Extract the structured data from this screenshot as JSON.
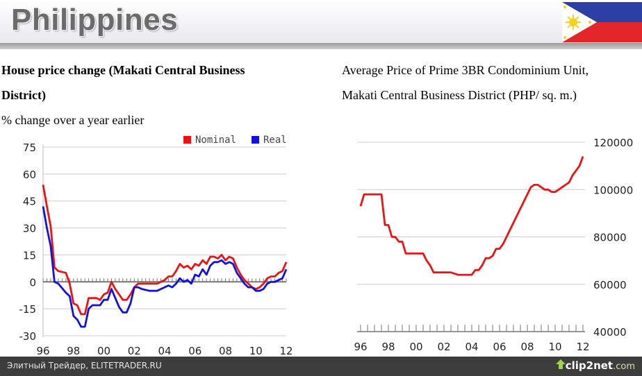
{
  "page": {
    "title": "Philippines",
    "flag_icon": "philippines-flag-icon"
  },
  "footer": {
    "text": "Элитный Трейдер, ELITETRADER.RU",
    "brand": "clip2net",
    "brand_suffix": ".com",
    "brand_icon": "upload-arrow-icon"
  },
  "chart_data": [
    {
      "type": "line",
      "title_line1": "House price change (Makati Central Business",
      "title_line2": "District)",
      "subtitle": "% change over a year earlier",
      "x_ticks": [
        "96",
        "98",
        "00",
        "02",
        "04",
        "06",
        "08",
        "10",
        "12"
      ],
      "y_ticks": [
        "75",
        "60",
        "45",
        "30",
        "15",
        "0",
        "-15",
        "-30"
      ],
      "ylim": [
        -30,
        75
      ],
      "xlim": [
        1996,
        2012
      ],
      "grid": true,
      "legend_position": "top-right",
      "colors": {
        "Nominal": "#ee1111",
        "Real": "#1111dd"
      },
      "series": [
        {
          "name": "Nominal",
          "points": [
            [
              1996.0,
              54
            ],
            [
              1996.25,
              42
            ],
            [
              1996.5,
              31
            ],
            [
              1996.75,
              8
            ],
            [
              1997.0,
              6
            ],
            [
              1997.5,
              5
            ],
            [
              1997.75,
              -1
            ],
            [
              1998.0,
              -12
            ],
            [
              1998.25,
              -13
            ],
            [
              1998.5,
              -18
            ],
            [
              1998.75,
              -18
            ],
            [
              1999.0,
              -9
            ],
            [
              1999.25,
              -9
            ],
            [
              1999.5,
              -9
            ],
            [
              1999.75,
              -10
            ],
            [
              2000.0,
              -7
            ],
            [
              2000.25,
              -6
            ],
            [
              2000.5,
              0
            ],
            [
              2000.75,
              -4
            ],
            [
              2001.0,
              -7
            ],
            [
              2001.25,
              -10
            ],
            [
              2001.5,
              -10
            ],
            [
              2001.75,
              -7
            ],
            [
              2002.0,
              -3
            ],
            [
              2002.25,
              -1
            ],
            [
              2002.5,
              -1
            ],
            [
              2003.0,
              -1
            ],
            [
              2003.5,
              -1
            ],
            [
              2004.0,
              1
            ],
            [
              2004.25,
              3
            ],
            [
              2004.5,
              3
            ],
            [
              2004.75,
              6
            ],
            [
              2005.0,
              10
            ],
            [
              2005.25,
              8
            ],
            [
              2005.5,
              9
            ],
            [
              2005.75,
              7
            ],
            [
              2006.0,
              10
            ],
            [
              2006.25,
              9
            ],
            [
              2006.5,
              12
            ],
            [
              2006.75,
              10
            ],
            [
              2007.0,
              14
            ],
            [
              2007.25,
              14
            ],
            [
              2007.5,
              13
            ],
            [
              2007.75,
              15
            ],
            [
              2008.0,
              12
            ],
            [
              2008.25,
              14
            ],
            [
              2008.5,
              13
            ],
            [
              2008.75,
              8
            ],
            [
              2009.0,
              4
            ],
            [
              2009.25,
              1
            ],
            [
              2009.5,
              -1
            ],
            [
              2009.75,
              -3
            ],
            [
              2010.0,
              -4
            ],
            [
              2010.25,
              -3
            ],
            [
              2010.5,
              -1
            ],
            [
              2010.75,
              2
            ],
            [
              2011.0,
              3
            ],
            [
              2011.25,
              3
            ],
            [
              2011.5,
              5
            ],
            [
              2011.75,
              6
            ],
            [
              2012.0,
              11
            ]
          ]
        },
        {
          "name": "Real",
          "points": [
            [
              1996.0,
              42
            ],
            [
              1996.25,
              30
            ],
            [
              1996.5,
              20
            ],
            [
              1996.75,
              0
            ],
            [
              1997.0,
              -1
            ],
            [
              1997.5,
              -6
            ],
            [
              1997.75,
              -8
            ],
            [
              1998.0,
              -19
            ],
            [
              1998.25,
              -21
            ],
            [
              1998.5,
              -25
            ],
            [
              1998.75,
              -25
            ],
            [
              1999.0,
              -15
            ],
            [
              1999.25,
              -13
            ],
            [
              1999.5,
              -13
            ],
            [
              1999.75,
              -13
            ],
            [
              2000.0,
              -10
            ],
            [
              2000.25,
              -10
            ],
            [
              2000.5,
              -4
            ],
            [
              2000.75,
              -9
            ],
            [
              2001.0,
              -14
            ],
            [
              2001.25,
              -17
            ],
            [
              2001.5,
              -17
            ],
            [
              2001.75,
              -12
            ],
            [
              2002.0,
              -3
            ],
            [
              2002.25,
              -3
            ],
            [
              2002.5,
              -4
            ],
            [
              2003.0,
              -5
            ],
            [
              2003.5,
              -5
            ],
            [
              2004.0,
              -3
            ],
            [
              2004.25,
              -2
            ],
            [
              2004.5,
              -3
            ],
            [
              2004.75,
              -1
            ],
            [
              2005.0,
              2
            ],
            [
              2005.25,
              0
            ],
            [
              2005.5,
              1
            ],
            [
              2005.75,
              -1
            ],
            [
              2006.0,
              4
            ],
            [
              2006.25,
              3
            ],
            [
              2006.5,
              7
            ],
            [
              2006.75,
              4
            ],
            [
              2007.0,
              9
            ],
            [
              2007.25,
              11
            ],
            [
              2007.5,
              11
            ],
            [
              2007.75,
              12
            ],
            [
              2008.0,
              10
            ],
            [
              2008.25,
              11
            ],
            [
              2008.5,
              10
            ],
            [
              2008.75,
              5
            ],
            [
              2009.0,
              2
            ],
            [
              2009.25,
              -1
            ],
            [
              2009.5,
              -3
            ],
            [
              2009.75,
              -3
            ],
            [
              2010.0,
              -5
            ],
            [
              2010.25,
              -5
            ],
            [
              2010.5,
              -4
            ],
            [
              2010.75,
              -1
            ],
            [
              2011.0,
              0
            ],
            [
              2011.25,
              0
            ],
            [
              2011.5,
              1
            ],
            [
              2011.75,
              2
            ],
            [
              2012.0,
              7
            ]
          ]
        }
      ]
    },
    {
      "type": "line",
      "title_line1": "Average Price of Prime 3BR Condominium Unit,",
      "title_line2": "Makati Central Business District (PHP/ sq. m.)",
      "x_ticks": [
        "96",
        "98",
        "00",
        "02",
        "04",
        "06",
        "08",
        "10",
        "12"
      ],
      "y_ticks": [
        "120000",
        "100000",
        "80000",
        "60000",
        "40000"
      ],
      "ylim": [
        40000,
        120000
      ],
      "xlim": [
        1996,
        2012
      ],
      "grid": true,
      "y_axis_side": "right",
      "color": "#ee1111",
      "series": [
        {
          "points": [
            [
              1996.0,
              93000
            ],
            [
              1996.25,
              98000
            ],
            [
              1996.5,
              98000
            ],
            [
              1997.0,
              98000
            ],
            [
              1997.5,
              98000
            ],
            [
              1997.75,
              85000
            ],
            [
              1998.0,
              85000
            ],
            [
              1998.25,
              80000
            ],
            [
              1998.5,
              80000
            ],
            [
              1998.75,
              78000
            ],
            [
              1999.0,
              78000
            ],
            [
              1999.25,
              73000
            ],
            [
              1999.5,
              73000
            ],
            [
              2000.0,
              73000
            ],
            [
              2000.5,
              73000
            ],
            [
              2000.75,
              70000
            ],
            [
              2001.0,
              68000
            ],
            [
              2001.25,
              65000
            ],
            [
              2001.5,
              65000
            ],
            [
              2002.0,
              65000
            ],
            [
              2002.5,
              65000
            ],
            [
              2003.0,
              64000
            ],
            [
              2003.5,
              64000
            ],
            [
              2004.0,
              64000
            ],
            [
              2004.25,
              66000
            ],
            [
              2004.5,
              66000
            ],
            [
              2004.75,
              68000
            ],
            [
              2005.0,
              71000
            ],
            [
              2005.25,
              71000
            ],
            [
              2005.5,
              72000
            ],
            [
              2005.75,
              75000
            ],
            [
              2006.0,
              75000
            ],
            [
              2006.25,
              77000
            ],
            [
              2006.5,
              80000
            ],
            [
              2006.75,
              83000
            ],
            [
              2007.0,
              86000
            ],
            [
              2007.25,
              89000
            ],
            [
              2007.5,
              92000
            ],
            [
              2007.75,
              95000
            ],
            [
              2008.0,
              98000
            ],
            [
              2008.25,
              101000
            ],
            [
              2008.5,
              102000
            ],
            [
              2008.75,
              102000
            ],
            [
              2009.0,
              101000
            ],
            [
              2009.25,
              100000
            ],
            [
              2009.5,
              100000
            ],
            [
              2009.75,
              99000
            ],
            [
              2010.0,
              99000
            ],
            [
              2010.25,
              100000
            ],
            [
              2010.5,
              101000
            ],
            [
              2010.75,
              102000
            ],
            [
              2011.0,
              103000
            ],
            [
              2011.25,
              106000
            ],
            [
              2011.5,
              108000
            ],
            [
              2011.75,
              110000
            ],
            [
              2012.0,
              114000
            ]
          ]
        }
      ]
    }
  ]
}
